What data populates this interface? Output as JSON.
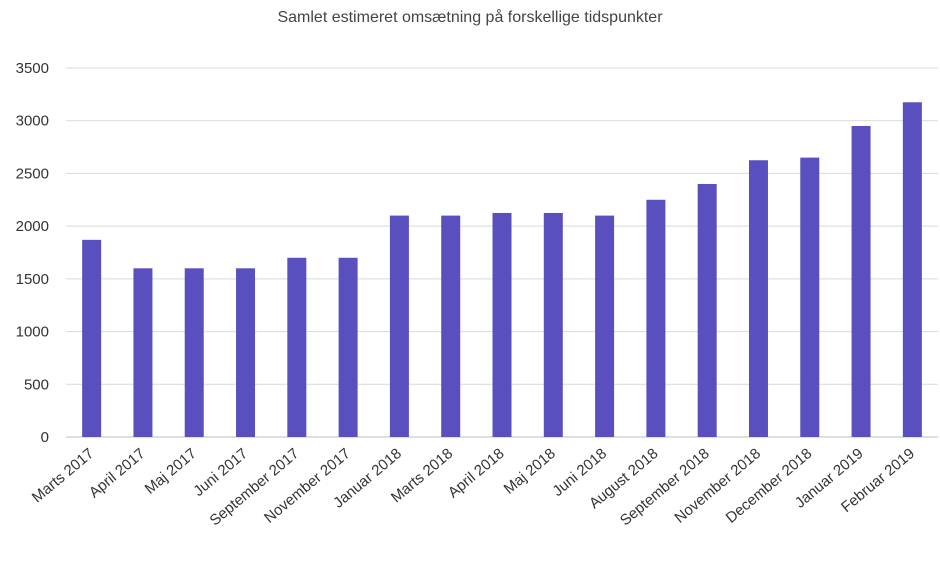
{
  "chart_data": {
    "type": "bar",
    "title": "Samlet estimeret omsætning på forskellige tidspunkter",
    "xlabel": "",
    "ylabel": "",
    "categories": [
      "Marts 2017",
      "April 2017",
      "Maj 2017",
      "Juni 2017",
      "September 2017",
      "November 2017",
      "Januar 2018",
      "Marts 2018",
      "April 2018",
      "Maj 2018",
      "Juni 2018",
      "August 2018",
      "September 2018",
      "November 2018",
      "December 2018",
      "Januar 2019",
      "Februar 2019"
    ],
    "values": [
      1870,
      1600,
      1600,
      1600,
      1700,
      1700,
      2100,
      2100,
      2125,
      2125,
      2100,
      2250,
      2400,
      2625,
      2650,
      2950,
      3175
    ],
    "ylim": [
      0,
      3500
    ],
    "yticks": [
      0,
      500,
      1000,
      1500,
      2000,
      2500,
      3000,
      3500
    ],
    "grid": true,
    "legend": "none",
    "colors": {
      "bar": "#5a4fbf",
      "grid": "#d9d9d9",
      "axis": "#bfbfbf",
      "text": "#333333"
    }
  }
}
